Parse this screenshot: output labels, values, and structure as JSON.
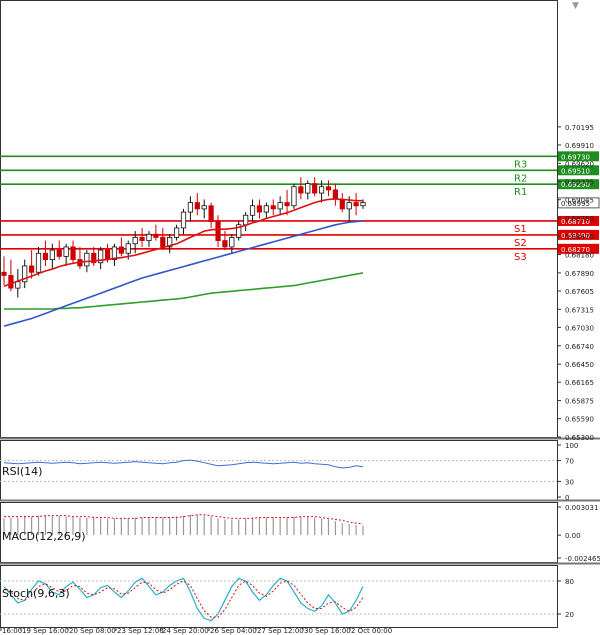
{
  "chart_data": {
    "type": "candlestick",
    "price_axis": {
      "ylim": [
        0.653,
        0.7215
      ],
      "ticks": [
        "0.70195",
        "0.69910",
        "0.69620",
        "0.69335",
        "0.69045",
        "0.68760",
        "0.68470",
        "0.68180",
        "0.67890",
        "0.67605",
        "0.67315",
        "0.67030",
        "0.66740",
        "0.66450",
        "0.66165",
        "0.65875",
        "0.65590",
        "0.65300"
      ]
    },
    "current_price": "0.68995",
    "levels": [
      {
        "name": "R3",
        "value": "0.69730",
        "color": "#1e8c1e"
      },
      {
        "name": "R2",
        "value": "0.69510",
        "color": "#1e8c1e"
      },
      {
        "name": "R1",
        "value": "0.69290",
        "color": "#1e8c1e"
      },
      {
        "name": "S1",
        "value": "0.68710",
        "color": "#e00000"
      },
      {
        "name": "S2",
        "value": "0.68490",
        "color": "#e00000"
      },
      {
        "name": "S3",
        "value": "0.68270",
        "color": "#e00000"
      }
    ],
    "candles": [
      [
        0.679,
        0.6815,
        0.677,
        0.6785
      ],
      [
        0.6785,
        0.681,
        0.676,
        0.6765
      ],
      [
        0.6765,
        0.6795,
        0.675,
        0.6775
      ],
      [
        0.6775,
        0.681,
        0.6765,
        0.68
      ],
      [
        0.68,
        0.6825,
        0.678,
        0.679
      ],
      [
        0.679,
        0.683,
        0.6785,
        0.682
      ],
      [
        0.682,
        0.684,
        0.68,
        0.681
      ],
      [
        0.681,
        0.6835,
        0.6795,
        0.6825
      ],
      [
        0.6825,
        0.684,
        0.681,
        0.6815
      ],
      [
        0.6815,
        0.6835,
        0.68,
        0.683
      ],
      [
        0.683,
        0.684,
        0.6805,
        0.681
      ],
      [
        0.681,
        0.683,
        0.6795,
        0.68
      ],
      [
        0.68,
        0.6825,
        0.679,
        0.682
      ],
      [
        0.682,
        0.683,
        0.68,
        0.6805
      ],
      [
        0.6805,
        0.683,
        0.6795,
        0.6825
      ],
      [
        0.6825,
        0.6835,
        0.6805,
        0.681
      ],
      [
        0.681,
        0.6835,
        0.68,
        0.683
      ],
      [
        0.683,
        0.6845,
        0.6815,
        0.682
      ],
      [
        0.682,
        0.684,
        0.681,
        0.6835
      ],
      [
        0.6835,
        0.6855,
        0.682,
        0.6845
      ],
      [
        0.6845,
        0.686,
        0.683,
        0.684
      ],
      [
        0.684,
        0.6855,
        0.683,
        0.685
      ],
      [
        0.685,
        0.6865,
        0.684,
        0.6845
      ],
      [
        0.6845,
        0.686,
        0.6825,
        0.683
      ],
      [
        0.683,
        0.685,
        0.682,
        0.6845
      ],
      [
        0.6845,
        0.6865,
        0.684,
        0.686
      ],
      [
        0.686,
        0.689,
        0.685,
        0.6885
      ],
      [
        0.6885,
        0.691,
        0.687,
        0.69
      ],
      [
        0.69,
        0.6915,
        0.688,
        0.689
      ],
      [
        0.689,
        0.6905,
        0.6875,
        0.6895
      ],
      [
        0.6895,
        0.69,
        0.686,
        0.687
      ],
      [
        0.687,
        0.688,
        0.683,
        0.684
      ],
      [
        0.684,
        0.6855,
        0.6825,
        0.683
      ],
      [
        0.683,
        0.685,
        0.682,
        0.6845
      ],
      [
        0.6845,
        0.687,
        0.684,
        0.6865
      ],
      [
        0.6865,
        0.6885,
        0.6855,
        0.688
      ],
      [
        0.688,
        0.6905,
        0.687,
        0.6895
      ],
      [
        0.6895,
        0.6905,
        0.6875,
        0.6885
      ],
      [
        0.6885,
        0.69,
        0.6875,
        0.6895
      ],
      [
        0.6895,
        0.6905,
        0.688,
        0.689
      ],
      [
        0.689,
        0.691,
        0.688,
        0.69
      ],
      [
        0.69,
        0.692,
        0.688,
        0.6895
      ],
      [
        0.6895,
        0.693,
        0.689,
        0.6925
      ],
      [
        0.6925,
        0.694,
        0.6905,
        0.6915
      ],
      [
        0.6915,
        0.6935,
        0.6905,
        0.693
      ],
      [
        0.693,
        0.694,
        0.691,
        0.6915
      ],
      [
        0.6915,
        0.6935,
        0.69,
        0.6925
      ],
      [
        0.6925,
        0.6935,
        0.691,
        0.692
      ],
      [
        0.692,
        0.693,
        0.6895,
        0.6905
      ],
      [
        0.6905,
        0.6915,
        0.6885,
        0.689
      ],
      [
        0.689,
        0.691,
        0.687,
        0.69
      ],
      [
        0.69,
        0.6915,
        0.688,
        0.6895
      ],
      [
        0.6895,
        0.6905,
        0.689,
        0.69
      ]
    ],
    "ma_fast": [
      0.6768,
      0.6772,
      0.6776,
      0.678,
      0.6784,
      0.6788,
      0.6792,
      0.6795,
      0.6799,
      0.6802,
      0.6804,
      0.6806,
      0.6807,
      0.6808,
      0.6809,
      0.681,
      0.6812,
      0.6813,
      0.6815,
      0.6817,
      0.682,
      0.6823,
      0.6826,
      0.6829,
      0.6832,
      0.6835,
      0.684,
      0.6845,
      0.685,
      0.6855,
      0.6857,
      0.6858,
      0.6858,
      0.6859,
      0.6861,
      0.6864,
      0.6868,
      0.6871,
      0.6875,
      0.6878,
      0.6881,
      0.6884,
      0.6888,
      0.6892,
      0.6896,
      0.69,
      0.6903,
      0.6905,
      0.6906,
      0.6905,
      0.6904,
      0.6903,
      0.6903
    ],
    "ma_mid": [
      0.6705,
      0.6708,
      0.6711,
      0.6714,
      0.6717,
      0.6721,
      0.6725,
      0.6729,
      0.6733,
      0.6737,
      0.6741,
      0.6745,
      0.6749,
      0.6753,
      0.6757,
      0.6761,
      0.6765,
      0.6769,
      0.6773,
      0.6777,
      0.6781,
      0.6784,
      0.6787,
      0.679,
      0.6793,
      0.6796,
      0.6799,
      0.6802,
      0.6805,
      0.6808,
      0.6811,
      0.6814,
      0.6817,
      0.682,
      0.6823,
      0.6826,
      0.6829,
      0.6832,
      0.6835,
      0.6838,
      0.6841,
      0.6844,
      0.6847,
      0.685,
      0.6853,
      0.6856,
      0.6859,
      0.6862,
      0.6865,
      0.6867,
      0.6869,
      0.687,
      0.6871
    ],
    "ma_slow": [
      0.6732,
      0.6732,
      0.6732,
      0.6732,
      0.6732,
      0.6732,
      0.6732,
      0.6732,
      0.6733,
      0.6733,
      0.6734,
      0.6734,
      0.6735,
      0.6736,
      0.6737,
      0.6738,
      0.6739,
      0.674,
      0.6741,
      0.6742,
      0.6743,
      0.6744,
      0.6745,
      0.6746,
      0.6747,
      0.6748,
      0.6749,
      0.6751,
      0.6753,
      0.6755,
      0.6757,
      0.6758,
      0.6759,
      0.676,
      0.6761,
      0.6762,
      0.6763,
      0.6764,
      0.6765,
      0.6766,
      0.6767,
      0.6768,
      0.6769,
      0.6771,
      0.6773,
      0.6775,
      0.6777,
      0.6779,
      0.6781,
      0.6783,
      0.6785,
      0.6787,
      0.6789
    ],
    "x_ticks": [
      "16:00",
      "19 Sep 16:00",
      "20 Sep 08:00",
      "23 Sep 12:00",
      "24 Sep 20:00",
      "26 Sep 04:00",
      "27 Sep 12:00",
      "30 Sep 16:00",
      "2 Oct 00:00"
    ],
    "rsi": {
      "label": "RSI(14)",
      "ticks": [
        "100",
        "70",
        "30",
        "0"
      ],
      "values": [
        66,
        65,
        64,
        65,
        66,
        67,
        66,
        65,
        66,
        67,
        66,
        64,
        65,
        66,
        67,
        66,
        65,
        66,
        67,
        68,
        67,
        66,
        65,
        64,
        66,
        67,
        70,
        71,
        69,
        66,
        63,
        60,
        61,
        62,
        64,
        66,
        67,
        66,
        65,
        64,
        65,
        66,
        67,
        65,
        66,
        64,
        63,
        62,
        58,
        56,
        57,
        60,
        58
      ]
    },
    "macd": {
      "label": "MACD(12,26,9)",
      "ticks": [
        "0.003031",
        "0.00",
        "-0.002465"
      ],
      "histogram": [
        0.0018,
        0.0019,
        0.0019,
        0.002,
        0.002,
        0.0021,
        0.0021,
        0.0021,
        0.0021,
        0.002,
        0.002,
        0.0019,
        0.0019,
        0.0019,
        0.0018,
        0.0018,
        0.0018,
        0.0018,
        0.0018,
        0.0019,
        0.0019,
        0.0019,
        0.0019,
        0.0019,
        0.0019,
        0.002,
        0.0021,
        0.0022,
        0.0022,
        0.0021,
        0.002,
        0.0018,
        0.0017,
        0.0017,
        0.0017,
        0.0018,
        0.0019,
        0.0019,
        0.0019,
        0.0019,
        0.0019,
        0.0019,
        0.002,
        0.002,
        0.002,
        0.0019,
        0.0018,
        0.0017,
        0.0015,
        0.0013,
        0.0012,
        0.0011,
        0.001
      ],
      "signal": [
        0.002,
        0.002,
        0.002,
        0.002,
        0.002,
        0.002,
        0.0021,
        0.0021,
        0.0021,
        0.0021,
        0.002,
        0.002,
        0.002,
        0.0019,
        0.0019,
        0.0019,
        0.0018,
        0.0018,
        0.0018,
        0.0018,
        0.0019,
        0.0019,
        0.0019,
        0.0019,
        0.0019,
        0.0019,
        0.002,
        0.0021,
        0.0022,
        0.0022,
        0.0021,
        0.002,
        0.0019,
        0.0018,
        0.0018,
        0.0018,
        0.0018,
        0.0019,
        0.0019,
        0.0019,
        0.0019,
        0.0019,
        0.0019,
        0.002,
        0.002,
        0.002,
        0.0019,
        0.0018,
        0.0017,
        0.0016,
        0.0014,
        0.0013,
        0.0012
      ]
    },
    "stoch": {
      "label": "Stoch(9,6,3)",
      "ticks": [
        "80",
        "20"
      ],
      "k": [
        70,
        55,
        40,
        45,
        65,
        80,
        75,
        60,
        55,
        70,
        78,
        65,
        50,
        55,
        68,
        72,
        60,
        50,
        62,
        78,
        85,
        70,
        55,
        60,
        72,
        80,
        85,
        60,
        30,
        12,
        8,
        20,
        45,
        70,
        85,
        80,
        60,
        45,
        55,
        72,
        85,
        80,
        60,
        40,
        30,
        25,
        35,
        55,
        40,
        20,
        25,
        45,
        70
      ],
      "d": [
        65,
        60,
        48,
        45,
        55,
        70,
        75,
        68,
        60,
        62,
        72,
        70,
        58,
        55,
        60,
        68,
        66,
        56,
        58,
        68,
        78,
        76,
        64,
        58,
        64,
        74,
        80,
        72,
        48,
        26,
        14,
        14,
        28,
        50,
        72,
        80,
        72,
        58,
        52,
        62,
        76,
        80,
        72,
        56,
        40,
        30,
        30,
        40,
        42,
        32,
        25,
        32,
        50
      ]
    }
  }
}
